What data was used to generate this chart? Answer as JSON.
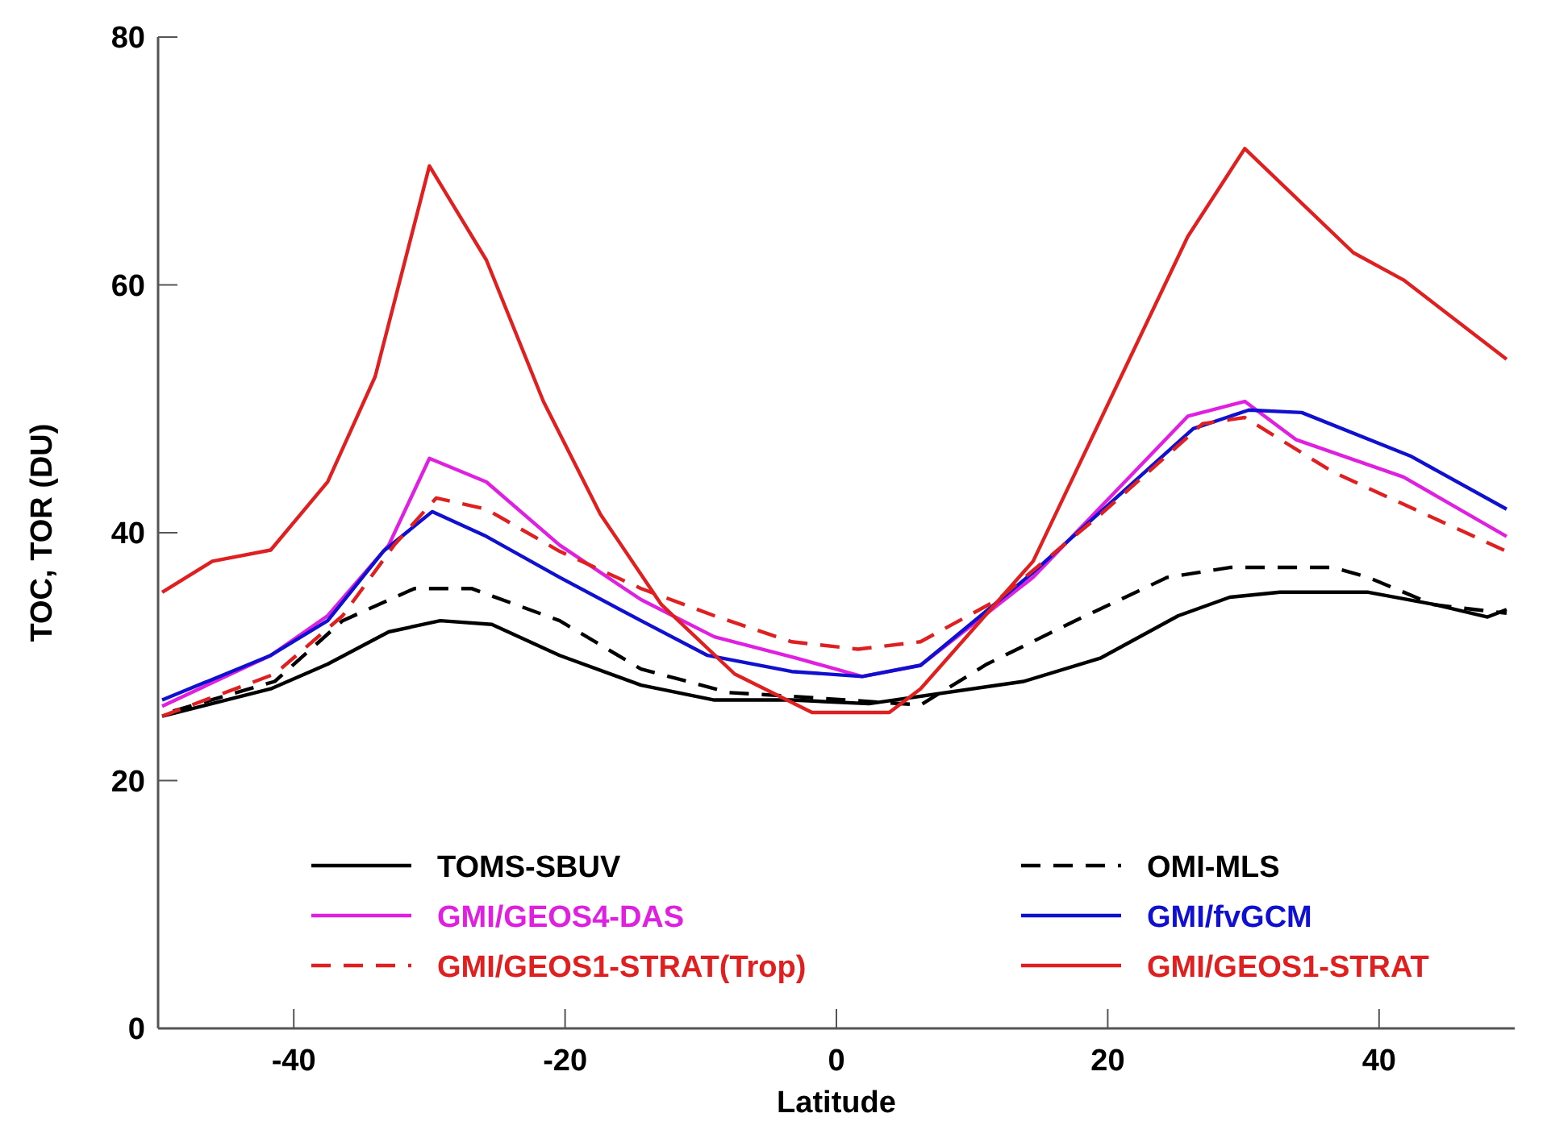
{
  "chart_data": {
    "type": "line",
    "xlabel": "Latitude",
    "ylabel": "TOC, TOR (DU)",
    "xlim": [
      -50,
      50
    ],
    "xticks": [
      -40,
      -20,
      0,
      20,
      40
    ],
    "ylim": [
      0,
      80
    ],
    "yticks": [
      0,
      20,
      40,
      60,
      80
    ],
    "legend": "bottom",
    "grid": false,
    "series": [
      {
        "name": "TOMS-SBUV",
        "color": "#000000",
        "line_style": "solid",
        "x": [
          -49.7,
          -41.7,
          -37.5,
          -33,
          -29.2,
          -25.4,
          -20.4,
          -14.4,
          -9,
          -3.3,
          2.4,
          13.8,
          19.5,
          25.2,
          29,
          32.7,
          39.2,
          44.1,
          48,
          49.4
        ],
        "values": [
          25.2,
          27.4,
          29.4,
          32,
          32.9,
          32.6,
          30.1,
          27.7,
          26.5,
          26.5,
          26.2,
          28,
          29.9,
          33.3,
          34.8,
          35.2,
          35.2,
          34.2,
          33.2,
          33.8
        ]
      },
      {
        "name": "OMI-MLS",
        "color": "#000000",
        "line_style": "dashed",
        "x": [
          -48.9,
          -41.4,
          -36.4,
          -31.1,
          -26.9,
          -20.4,
          -14.4,
          -7.9,
          -3.3,
          6.2,
          11.1,
          17.6,
          24.4,
          29,
          36.6,
          39.2,
          44,
          49.4
        ],
        "values": [
          25.6,
          28,
          32.9,
          35.5,
          35.5,
          32.9,
          29,
          27.1,
          26.8,
          26.1,
          29.4,
          32.9,
          36.4,
          37.2,
          37.2,
          36.4,
          34.2,
          33.5
        ]
      },
      {
        "name": "GMI/GEOS4-DAS",
        "color": "#e020e0",
        "line_style": "solid",
        "x": [
          -49.7,
          -41.7,
          -37.5,
          -33,
          -30,
          -25.8,
          -20.4,
          -14.4,
          -9,
          -3,
          1.9,
          6.2,
          14.5,
          25.9,
          30.1,
          33.9,
          41.8,
          49.4
        ],
        "values": [
          26,
          30.1,
          33.3,
          39,
          46,
          44.1,
          39,
          34.6,
          31.6,
          29.9,
          28.4,
          29.3,
          36.4,
          49.4,
          50.6,
          47.5,
          44.5,
          39.7
        ]
      },
      {
        "name": "GMI/fvGCM",
        "color": "#1010d0",
        "line_style": "solid",
        "x": [
          -49.7,
          -41.7,
          -37.5,
          -33.4,
          -29.8,
          -25.8,
          -20.4,
          -14.4,
          -9.5,
          -3.3,
          1.9,
          6.2,
          14.5,
          26.3,
          30.4,
          34.3,
          42.3,
          49.4
        ],
        "values": [
          26.5,
          30.1,
          32.9,
          38.5,
          41.7,
          39.7,
          36.4,
          32.9,
          30.1,
          28.8,
          28.4,
          29.3,
          36.8,
          48.4,
          49.9,
          49.7,
          46.2,
          41.9
        ]
      },
      {
        "name": "GMI/GEOS1-STRAT(Trop)",
        "color": "#e02020",
        "line_style": "dashed",
        "x": [
          -49.7,
          -41.4,
          -36.4,
          -32.6,
          -29.5,
          -25.8,
          -20.4,
          -14.4,
          -9,
          -3.3,
          1.6,
          6.2,
          11.9,
          19.5,
          27,
          30.1,
          36.6,
          49.4
        ],
        "values": [
          25.2,
          28.6,
          33.3,
          39,
          42.8,
          41.9,
          38.5,
          35.5,
          33.3,
          31.2,
          30.6,
          31.2,
          34.6,
          41.5,
          48.8,
          49.3,
          44.9,
          38.5
        ]
      },
      {
        "name": "GMI/GEOS1-STRAT",
        "color": "#e02020",
        "line_style": "solid",
        "x": [
          -49.7,
          -46,
          -41.7,
          -37.5,
          -34,
          -30,
          -25.8,
          -21.6,
          -17.4,
          -12.9,
          -7.5,
          -1.8,
          3.9,
          6.2,
          14.5,
          25.9,
          30.1,
          38.1,
          41.8,
          49.4
        ],
        "values": [
          35.2,
          37.7,
          38.6,
          44.1,
          52.6,
          69.6,
          62,
          50.6,
          41.5,
          34.2,
          28.6,
          25.5,
          25.5,
          27.4,
          37.7,
          63.9,
          71,
          62.6,
          60.4,
          54
        ]
      }
    ]
  }
}
